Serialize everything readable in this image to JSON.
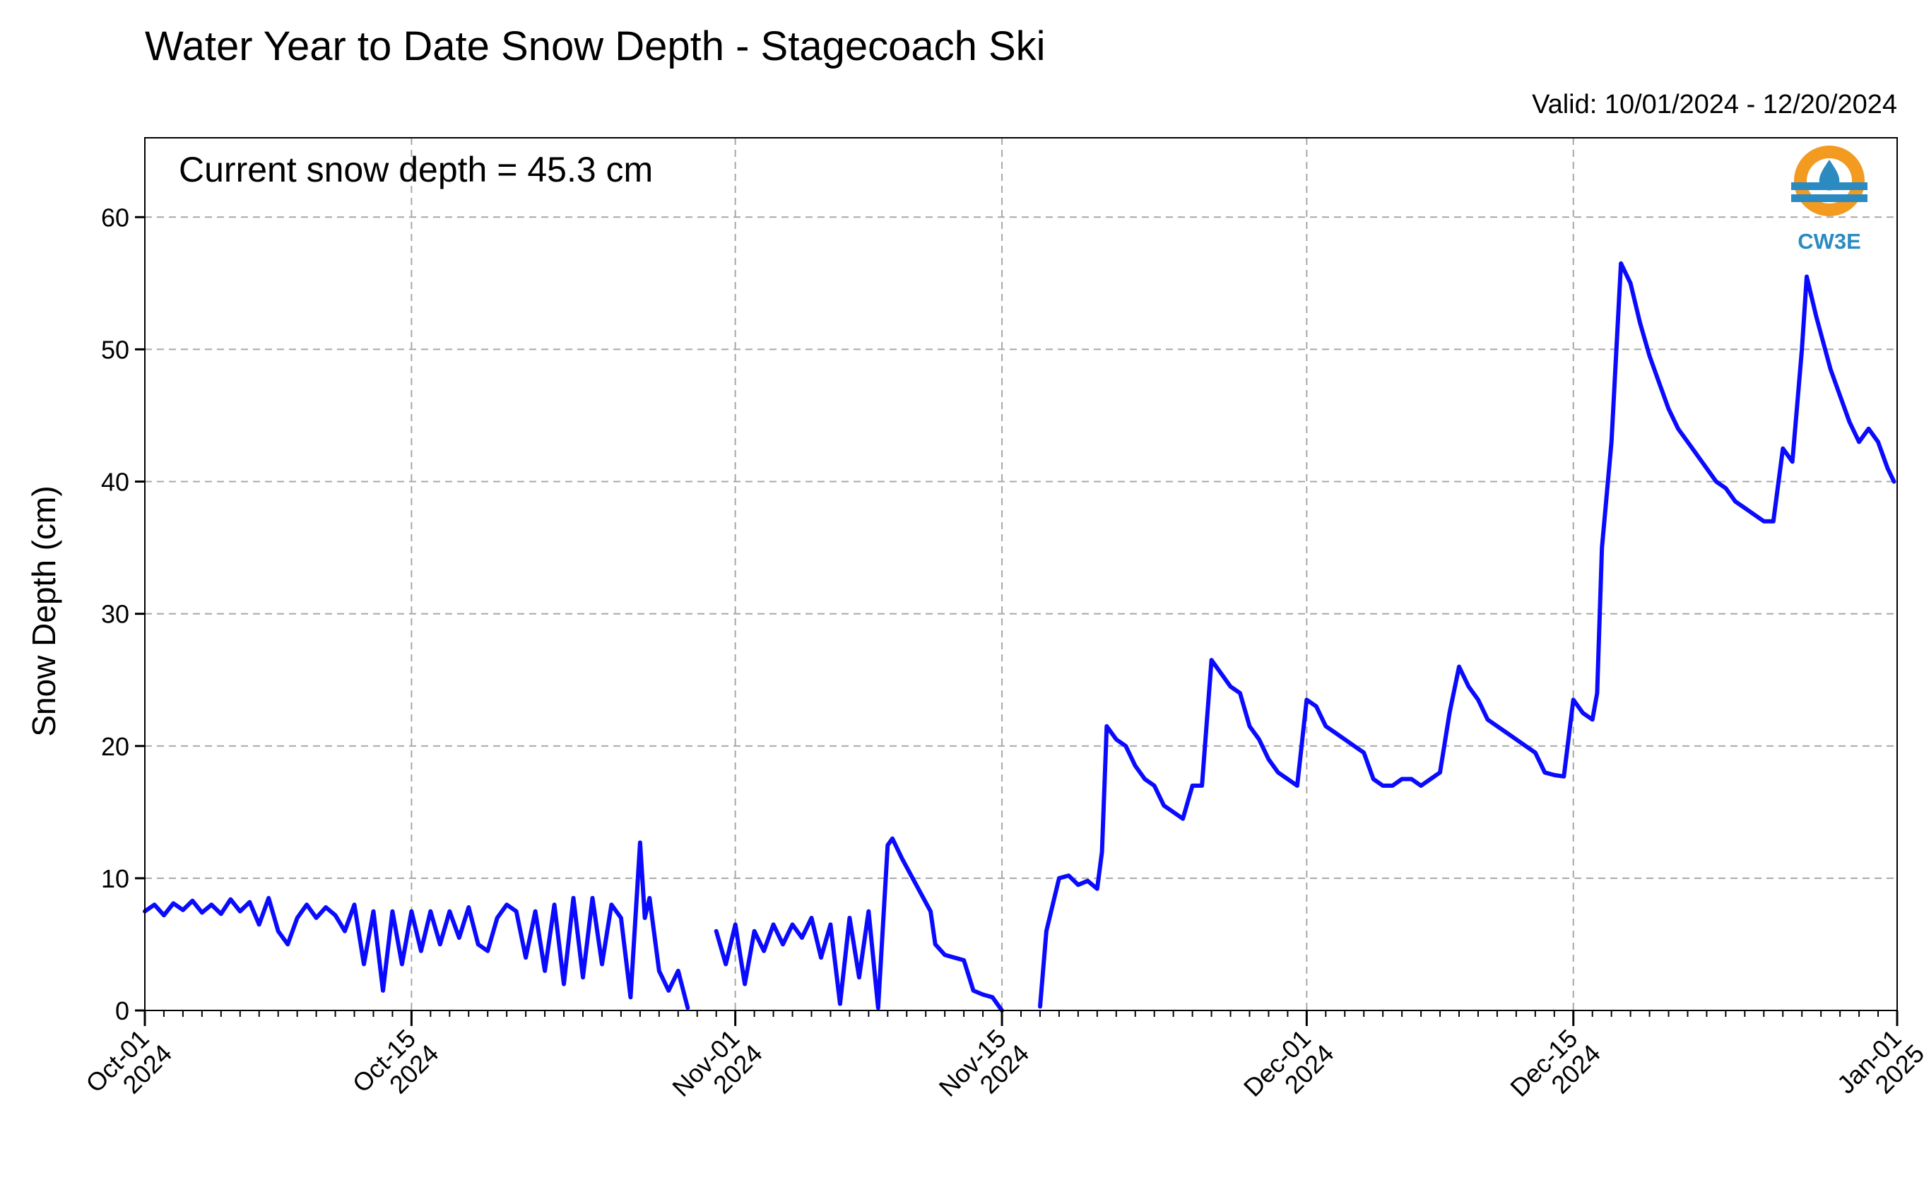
{
  "chart_data": {
    "type": "line",
    "title": "Water Year to Date Snow Depth - Stagecoach Ski",
    "subtitle": "Valid: 10/01/2024 - 12/20/2024",
    "annotation": "Current snow depth = 45.3 cm",
    "ylabel": "Snow Depth (cm)",
    "xlabel": "",
    "xlim": [
      "2024-10-01",
      "2025-01-01"
    ],
    "ylim": [
      0,
      66
    ],
    "grid": true,
    "x_ticks": [
      {
        "date": "2024-10-01",
        "line1": "Oct-01",
        "line2": "2024"
      },
      {
        "date": "2024-10-15",
        "line1": "Oct-15",
        "line2": "2024"
      },
      {
        "date": "2024-11-01",
        "line1": "Nov-01",
        "line2": "2024"
      },
      {
        "date": "2024-11-15",
        "line1": "Nov-15",
        "line2": "2024"
      },
      {
        "date": "2024-12-01",
        "line1": "Dec-01",
        "line2": "2024"
      },
      {
        "date": "2024-12-15",
        "line1": "Dec-15",
        "line2": "2024"
      },
      {
        "date": "2025-01-01",
        "line1": "Jan-01",
        "line2": "2025"
      }
    ],
    "y_ticks": [
      0,
      10,
      20,
      30,
      40,
      50,
      60
    ],
    "logo": {
      "text": "CW3E",
      "colors": {
        "sun": "#f39a21",
        "water": "#2b8bc0"
      }
    },
    "series": [
      {
        "color": "#0a0aff",
        "points": [
          [
            "2024-10-01 00:00",
            7.5
          ],
          [
            "2024-10-01 12:00",
            8.0
          ],
          [
            "2024-10-02 00:00",
            7.2
          ],
          [
            "2024-10-02 12:00",
            8.1
          ],
          [
            "2024-10-03 00:00",
            7.6
          ],
          [
            "2024-10-03 12:00",
            8.3
          ],
          [
            "2024-10-04 00:00",
            7.4
          ],
          [
            "2024-10-04 12:00",
            8.0
          ],
          [
            "2024-10-05 00:00",
            7.3
          ],
          [
            "2024-10-05 12:00",
            8.4
          ],
          [
            "2024-10-06 00:00",
            7.5
          ],
          [
            "2024-10-06 12:00",
            8.2
          ],
          [
            "2024-10-07 00:00",
            6.5
          ],
          [
            "2024-10-07 12:00",
            8.5
          ],
          [
            "2024-10-08 00:00",
            6.0
          ],
          [
            "2024-10-08 12:00",
            5.0
          ],
          [
            "2024-10-09 00:00",
            7.0
          ],
          [
            "2024-10-09 12:00",
            8.0
          ],
          [
            "2024-10-10 00:00",
            7.0
          ],
          [
            "2024-10-10 12:00",
            7.8
          ],
          [
            "2024-10-11 00:00",
            7.2
          ],
          [
            "2024-10-11 12:00",
            6.0
          ],
          [
            "2024-10-12 00:00",
            8.0
          ],
          [
            "2024-10-12 12:00",
            3.5
          ],
          [
            "2024-10-13 00:00",
            7.5
          ],
          [
            "2024-10-13 12:00",
            1.5
          ],
          [
            "2024-10-14 00:00",
            7.5
          ],
          [
            "2024-10-14 12:00",
            3.5
          ],
          [
            "2024-10-15 00:00",
            7.5
          ],
          [
            "2024-10-15 12:00",
            4.5
          ],
          [
            "2024-10-16 00:00",
            7.5
          ],
          [
            "2024-10-16 12:00",
            5.0
          ],
          [
            "2024-10-17 00:00",
            7.5
          ],
          [
            "2024-10-17 12:00",
            5.5
          ],
          [
            "2024-10-18 00:00",
            7.8
          ],
          [
            "2024-10-18 12:00",
            5.0
          ],
          [
            "2024-10-19 00:00",
            4.5
          ],
          [
            "2024-10-19 12:00",
            7.0
          ],
          [
            "2024-10-20 00:00",
            8.0
          ],
          [
            "2024-10-20 12:00",
            7.5
          ],
          [
            "2024-10-21 00:00",
            4.0
          ],
          [
            "2024-10-21 12:00",
            7.5
          ],
          [
            "2024-10-22 00:00",
            3.0
          ],
          [
            "2024-10-22 12:00",
            8.0
          ],
          [
            "2024-10-23 00:00",
            2.0
          ],
          [
            "2024-10-23 12:00",
            8.5
          ],
          [
            "2024-10-24 00:00",
            2.5
          ],
          [
            "2024-10-24 12:00",
            8.5
          ],
          [
            "2024-10-25 00:00",
            3.5
          ],
          [
            "2024-10-25 12:00",
            8.0
          ],
          [
            "2024-10-26 00:00",
            7.0
          ],
          [
            "2024-10-26 12:00",
            1.0
          ],
          [
            "2024-10-27 00:00",
            12.7
          ],
          [
            "2024-10-27 06:00",
            7.0
          ],
          [
            "2024-10-27 12:00",
            8.5
          ],
          [
            "2024-10-28 00:00",
            3.0
          ],
          [
            "2024-10-28 12:00",
            1.5
          ],
          [
            "2024-10-29 00:00",
            3.0
          ],
          [
            "2024-10-29 12:00",
            0.2
          ],
          [
            "2024-10-30 12:00",
            null
          ],
          [
            "2024-10-31 00:00",
            6.0
          ],
          [
            "2024-10-31 12:00",
            3.5
          ],
          [
            "2024-11-01 00:00",
            6.5
          ],
          [
            "2024-11-01 12:00",
            2.0
          ],
          [
            "2024-11-02 00:00",
            6.0
          ],
          [
            "2024-11-02 12:00",
            4.5
          ],
          [
            "2024-11-03 00:00",
            6.5
          ],
          [
            "2024-11-03 12:00",
            5.0
          ],
          [
            "2024-11-04 00:00",
            6.5
          ],
          [
            "2024-11-04 12:00",
            5.5
          ],
          [
            "2024-11-05 00:00",
            7.0
          ],
          [
            "2024-11-05 12:00",
            4.0
          ],
          [
            "2024-11-06 00:00",
            6.5
          ],
          [
            "2024-11-06 12:00",
            0.5
          ],
          [
            "2024-11-07 00:00",
            7.0
          ],
          [
            "2024-11-07 12:00",
            2.5
          ],
          [
            "2024-11-08 00:00",
            7.5
          ],
          [
            "2024-11-08 12:00",
            0.2
          ],
          [
            "2024-11-09 00:00",
            12.5
          ],
          [
            "2024-11-09 06:00",
            13.0
          ],
          [
            "2024-11-09 18:00",
            11.5
          ],
          [
            "2024-11-10 12:00",
            9.5
          ],
          [
            "2024-11-11 06:00",
            7.5
          ],
          [
            "2024-11-11 12:00",
            5.0
          ],
          [
            "2024-11-12 00:00",
            4.2
          ],
          [
            "2024-11-12 12:00",
            4.0
          ],
          [
            "2024-11-13 00:00",
            3.8
          ],
          [
            "2024-11-13 12:00",
            1.5
          ],
          [
            "2024-11-14 00:00",
            1.2
          ],
          [
            "2024-11-14 12:00",
            1.0
          ],
          [
            "2024-11-15 00:00",
            0.0
          ],
          [
            "2024-11-16 00:00",
            null
          ],
          [
            "2024-11-17 00:00",
            0.3
          ],
          [
            "2024-11-17 08:00",
            6.0
          ],
          [
            "2024-11-17 16:00",
            8.0
          ],
          [
            "2024-11-18 00:00",
            10.0
          ],
          [
            "2024-11-18 12:00",
            10.2
          ],
          [
            "2024-11-19 00:00",
            9.5
          ],
          [
            "2024-11-19 12:00",
            9.8
          ],
          [
            "2024-11-20 00:00",
            9.2
          ],
          [
            "2024-11-20 06:00",
            12.0
          ],
          [
            "2024-11-20 12:00",
            21.5
          ],
          [
            "2024-11-21 00:00",
            20.5
          ],
          [
            "2024-11-21 12:00",
            20.0
          ],
          [
            "2024-11-22 00:00",
            18.5
          ],
          [
            "2024-11-22 12:00",
            17.5
          ],
          [
            "2024-11-23 00:00",
            17.0
          ],
          [
            "2024-11-23 12:00",
            15.5
          ],
          [
            "2024-11-24 00:00",
            15.0
          ],
          [
            "2024-11-24 12:00",
            14.5
          ],
          [
            "2024-11-25 00:00",
            17.0
          ],
          [
            "2024-11-25 12:00",
            17.0
          ],
          [
            "2024-11-26 00:00",
            26.5
          ],
          [
            "2024-11-26 12:00",
            25.5
          ],
          [
            "2024-11-27 00:00",
            24.5
          ],
          [
            "2024-11-27 12:00",
            24.0
          ],
          [
            "2024-11-28 00:00",
            21.5
          ],
          [
            "2024-11-28 12:00",
            20.5
          ],
          [
            "2024-11-29 00:00",
            19.0
          ],
          [
            "2024-11-29 12:00",
            18.0
          ],
          [
            "2024-11-30 00:00",
            17.5
          ],
          [
            "2024-11-30 12:00",
            17.0
          ],
          [
            "2024-12-01 00:00",
            23.5
          ],
          [
            "2024-12-01 12:00",
            23.0
          ],
          [
            "2024-12-02 00:00",
            21.5
          ],
          [
            "2024-12-02 12:00",
            21.0
          ],
          [
            "2024-12-03 00:00",
            20.5
          ],
          [
            "2024-12-03 12:00",
            20.0
          ],
          [
            "2024-12-04 00:00",
            19.5
          ],
          [
            "2024-12-04 12:00",
            17.5
          ],
          [
            "2024-12-05 00:00",
            17.0
          ],
          [
            "2024-12-05 12:00",
            17.0
          ],
          [
            "2024-12-06 00:00",
            17.5
          ],
          [
            "2024-12-06 12:00",
            17.5
          ],
          [
            "2024-12-07 00:00",
            17.0
          ],
          [
            "2024-12-07 12:00",
            17.5
          ],
          [
            "2024-12-08 00:00",
            18.0
          ],
          [
            "2024-12-08 12:00",
            22.5
          ],
          [
            "2024-12-09 00:00",
            26.0
          ],
          [
            "2024-12-09 12:00",
            24.5
          ],
          [
            "2024-12-10 00:00",
            23.5
          ],
          [
            "2024-12-10 12:00",
            22.0
          ],
          [
            "2024-12-11 00:00",
            21.5
          ],
          [
            "2024-12-11 12:00",
            21.0
          ],
          [
            "2024-12-12 00:00",
            20.5
          ],
          [
            "2024-12-12 12:00",
            20.0
          ],
          [
            "2024-12-13 00:00",
            19.5
          ],
          [
            "2024-12-13 12:00",
            18.0
          ],
          [
            "2024-12-14 00:00",
            17.8
          ],
          [
            "2024-12-14 12:00",
            17.7
          ],
          [
            "2024-12-15 00:00",
            23.5
          ],
          [
            "2024-12-15 12:00",
            22.5
          ],
          [
            "2024-12-16 00:00",
            22.0
          ],
          [
            "2024-12-16 06:00",
            24.0
          ],
          [
            "2024-12-16 12:00",
            35.0
          ],
          [
            "2024-12-17 00:00",
            43.0
          ],
          [
            "2024-12-17 12:00",
            56.5
          ],
          [
            "2024-12-18 00:00",
            55.0
          ],
          [
            "2024-12-18 12:00",
            52.0
          ],
          [
            "2024-12-19 00:00",
            49.5
          ],
          [
            "2024-12-19 12:00",
            47.5
          ],
          [
            "2024-12-20 00:00",
            45.5
          ],
          [
            "2024-12-20 12:00",
            44.0
          ],
          [
            "2024-12-21 00:00",
            43.0
          ],
          [
            "2024-12-21 12:00",
            42.0
          ],
          [
            "2024-12-22 00:00",
            41.0
          ],
          [
            "2024-12-22 12:00",
            40.0
          ],
          [
            "2024-12-23 00:00",
            39.5
          ],
          [
            "2024-12-23 12:00",
            38.5
          ],
          [
            "2024-12-24 00:00",
            38.0
          ],
          [
            "2024-12-24 12:00",
            37.5
          ],
          [
            "2024-12-25 00:00",
            37.0
          ],
          [
            "2024-12-25 12:00",
            37.0
          ],
          [
            "2024-12-26 00:00",
            42.5
          ],
          [
            "2024-12-26 12:00",
            41.5
          ],
          [
            "2024-12-27 00:00",
            50.0
          ],
          [
            "2024-12-27 06:00",
            55.5
          ],
          [
            "2024-12-27 18:00",
            52.5
          ],
          [
            "2024-12-28 12:00",
            48.5
          ],
          [
            "2024-12-29 00:00",
            46.5
          ],
          [
            "2024-12-29 12:00",
            44.5
          ],
          [
            "2024-12-30 00:00",
            43.0
          ],
          [
            "2024-12-30 12:00",
            44.0
          ],
          [
            "2024-12-31 00:00",
            43.0
          ],
          [
            "2024-12-31 12:00",
            41.0
          ],
          [
            "2024-12-31 20:00",
            40.0
          ]
        ]
      }
    ]
  }
}
